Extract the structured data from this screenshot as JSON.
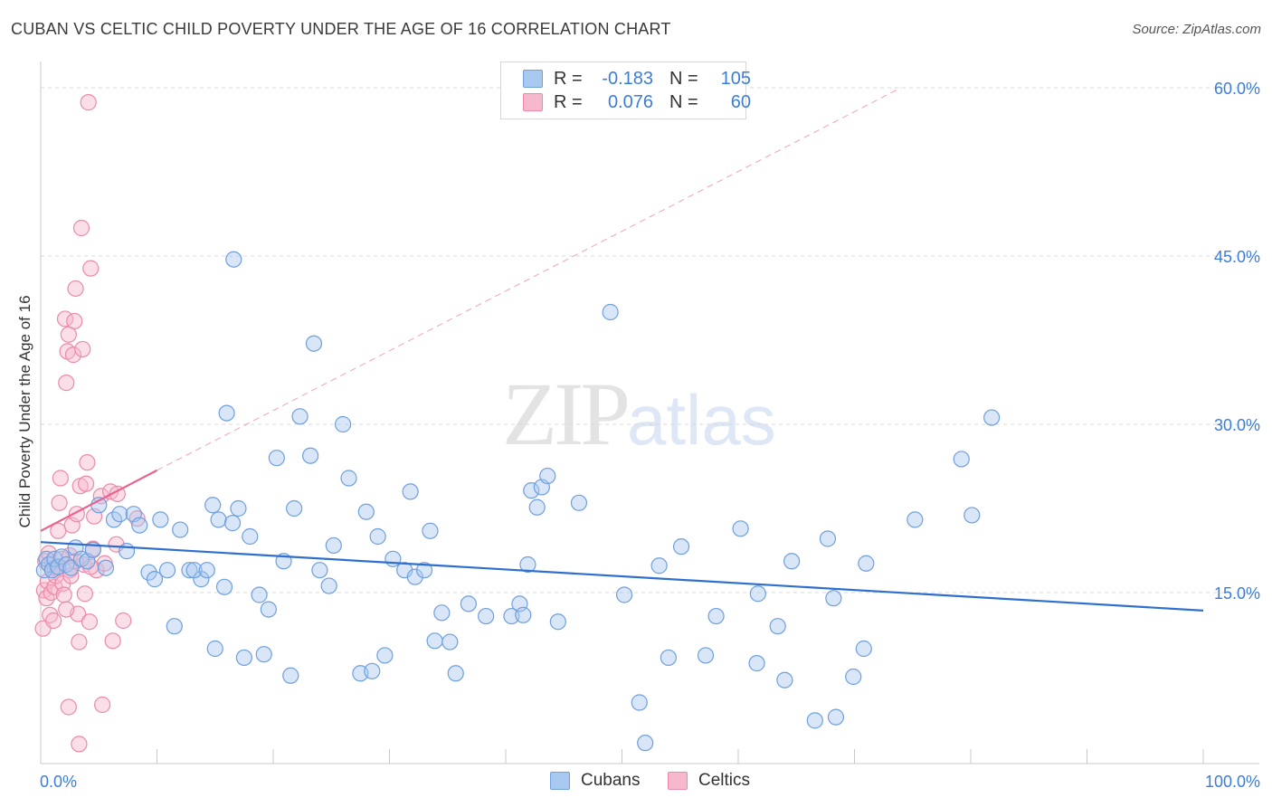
{
  "title": "CUBAN VS CELTIC CHILD POVERTY UNDER THE AGE OF 16 CORRELATION CHART",
  "source": "Source: ZipAtlas.com",
  "watermark": {
    "zip": "ZIP",
    "atlas": "atlas"
  },
  "legend": {
    "rows": [
      {
        "r_label": "R =",
        "r_value": "-0.183",
        "n_label": "N =",
        "n_value": "105",
        "color": "#a9c8f0"
      },
      {
        "r_label": "R =",
        "r_value": "0.076",
        "n_label": "N =",
        "n_value": "60",
        "color": "#f6b8cc"
      }
    ]
  },
  "bottom_legend": [
    "Cubans",
    "Celtics"
  ],
  "colors": {
    "cubans_fill": "#a9c8f0",
    "cubans_stroke": "#6f9fdd",
    "cubans_line": "#2f6fce",
    "celtics_fill": "#f6b8cc",
    "celtics_stroke": "#ec8aa8",
    "celtics_line": "#e8648e",
    "axis_label": "#3b7dd8",
    "grid": "#d8d8d8"
  },
  "chart_data": {
    "type": "scatter",
    "title": "CUBAN VS CELTIC CHILD POVERTY UNDER THE AGE OF 16 CORRELATION CHART",
    "xlabel": "",
    "ylabel": "Child Poverty Under the Age of 16",
    "xlim": [
      0,
      100
    ],
    "ylim": [
      0,
      61
    ],
    "x_tick_labels": [
      "0.0%",
      "100.0%"
    ],
    "y_ticks": [
      15,
      30,
      45,
      60
    ],
    "y_tick_labels": [
      "15.0%",
      "30.0%",
      "45.0%",
      "60.0%"
    ],
    "grid": "horizontal dashed",
    "legend_position": "top-center",
    "series": [
      {
        "name": "Cubans",
        "r": -0.183,
        "n": 105,
        "trend": {
          "x": [
            0,
            100
          ],
          "y": [
            19.5,
            13.4
          ]
        },
        "points": [
          [
            0.3,
            17.0
          ],
          [
            0.5,
            18.0
          ],
          [
            0.7,
            17.5
          ],
          [
            1.0,
            17.0
          ],
          [
            1.2,
            18.0
          ],
          [
            1.5,
            17.3
          ],
          [
            1.8,
            18.2
          ],
          [
            2.2,
            17.5
          ],
          [
            2.6,
            17.2
          ],
          [
            3.0,
            19.0
          ],
          [
            3.5,
            18.0
          ],
          [
            4.0,
            17.8
          ],
          [
            4.5,
            18.8
          ],
          [
            5.0,
            22.8
          ],
          [
            5.6,
            17.2
          ],
          [
            6.3,
            21.5
          ],
          [
            6.8,
            22.0
          ],
          [
            7.4,
            18.7
          ],
          [
            8.0,
            22.0
          ],
          [
            8.5,
            21.0
          ],
          [
            9.3,
            16.8
          ],
          [
            9.8,
            16.2
          ],
          [
            10.3,
            21.5
          ],
          [
            10.9,
            17.0
          ],
          [
            11.5,
            12.0
          ],
          [
            12.0,
            20.6
          ],
          [
            12.8,
            17.0
          ],
          [
            13.8,
            16.2
          ],
          [
            13.2,
            17.0
          ],
          [
            14.3,
            17.0
          ],
          [
            14.8,
            22.8
          ],
          [
            15.0,
            10.0
          ],
          [
            15.3,
            21.5
          ],
          [
            15.8,
            15.5
          ],
          [
            16.0,
            31.0
          ],
          [
            16.5,
            21.2
          ],
          [
            16.6,
            44.7
          ],
          [
            17.0,
            22.5
          ],
          [
            17.5,
            9.2
          ],
          [
            18.0,
            20.0
          ],
          [
            18.8,
            14.8
          ],
          [
            19.2,
            9.5
          ],
          [
            19.6,
            13.5
          ],
          [
            20.3,
            27.0
          ],
          [
            20.9,
            17.8
          ],
          [
            21.5,
            7.6
          ],
          [
            21.8,
            22.5
          ],
          [
            22.3,
            30.7
          ],
          [
            23.2,
            27.2
          ],
          [
            23.5,
            37.2
          ],
          [
            24.0,
            17.0
          ],
          [
            24.8,
            15.6
          ],
          [
            25.2,
            19.2
          ],
          [
            26.0,
            30.0
          ],
          [
            26.5,
            25.2
          ],
          [
            27.5,
            7.8
          ],
          [
            28.0,
            22.2
          ],
          [
            28.5,
            8.0
          ],
          [
            29.0,
            20.0
          ],
          [
            29.6,
            9.4
          ],
          [
            30.3,
            18.0
          ],
          [
            31.3,
            17.0
          ],
          [
            31.8,
            24.0
          ],
          [
            32.2,
            16.4
          ],
          [
            33.0,
            17.0
          ],
          [
            33.5,
            20.5
          ],
          [
            33.9,
            10.7
          ],
          [
            34.5,
            13.2
          ],
          [
            35.2,
            10.6
          ],
          [
            35.7,
            7.8
          ],
          [
            36.8,
            14.0
          ],
          [
            38.3,
            12.9
          ],
          [
            40.5,
            12.9
          ],
          [
            41.2,
            14.0
          ],
          [
            41.5,
            13.0
          ],
          [
            41.9,
            17.5
          ],
          [
            42.2,
            24.1
          ],
          [
            42.7,
            22.6
          ],
          [
            43.1,
            24.4
          ],
          [
            43.6,
            25.4
          ],
          [
            44.5,
            12.4
          ],
          [
            46.3,
            23.0
          ],
          [
            49.0,
            40.0
          ],
          [
            50.2,
            14.8
          ],
          [
            51.5,
            5.2
          ],
          [
            52.0,
            1.6
          ],
          [
            53.2,
            17.4
          ],
          [
            54.0,
            9.2
          ],
          [
            55.1,
            19.1
          ],
          [
            57.2,
            9.4
          ],
          [
            58.1,
            12.9
          ],
          [
            60.2,
            20.7
          ],
          [
            61.6,
            8.7
          ],
          [
            61.7,
            14.9
          ],
          [
            63.4,
            12.0
          ],
          [
            64.0,
            7.2
          ],
          [
            64.6,
            17.8
          ],
          [
            66.6,
            3.6
          ],
          [
            67.7,
            19.8
          ],
          [
            68.2,
            14.5
          ],
          [
            68.4,
            3.9
          ],
          [
            69.9,
            7.5
          ],
          [
            70.8,
            10.0
          ],
          [
            71.0,
            17.6
          ],
          [
            75.2,
            21.5
          ],
          [
            79.2,
            26.9
          ],
          [
            80.1,
            21.9
          ],
          [
            81.8,
            30.6
          ]
        ]
      },
      {
        "name": "Celtics",
        "r": 0.076,
        "n": 60,
        "trend": {
          "x": [
            0,
            10
          ],
          "y": [
            20.5,
            25.9
          ]
        },
        "trend_extension": {
          "x": [
            10,
            74
          ],
          "y": [
            25.9,
            60.0
          ]
        },
        "points": [
          [
            0.2,
            11.8
          ],
          [
            0.3,
            15.2
          ],
          [
            0.4,
            17.8
          ],
          [
            0.5,
            14.5
          ],
          [
            0.6,
            16.0
          ],
          [
            0.7,
            18.5
          ],
          [
            0.8,
            13.0
          ],
          [
            0.9,
            15.0
          ],
          [
            1.0,
            17.5
          ],
          [
            1.1,
            12.5
          ],
          [
            1.2,
            15.5
          ],
          [
            1.3,
            16.5
          ],
          [
            1.4,
            17.2
          ],
          [
            1.5,
            20.5
          ],
          [
            1.6,
            23.0
          ],
          [
            1.7,
            25.2
          ],
          [
            1.8,
            18.0
          ],
          [
            1.9,
            15.8
          ],
          [
            2.0,
            14.8
          ],
          [
            2.1,
            39.4
          ],
          [
            2.2,
            33.7
          ],
          [
            2.3,
            36.5
          ],
          [
            2.4,
            38.0
          ],
          [
            2.5,
            17.0
          ],
          [
            2.6,
            16.5
          ],
          [
            2.7,
            21.0
          ],
          [
            2.8,
            36.2
          ],
          [
            2.9,
            39.2
          ],
          [
            3.0,
            42.1
          ],
          [
            3.1,
            22.0
          ],
          [
            3.2,
            13.1
          ],
          [
            3.3,
            10.6
          ],
          [
            3.4,
            24.5
          ],
          [
            3.5,
            47.5
          ],
          [
            3.6,
            36.7
          ],
          [
            3.7,
            17.5
          ],
          [
            3.8,
            14.9
          ],
          [
            3.9,
            24.7
          ],
          [
            4.0,
            26.6
          ],
          [
            4.1,
            58.7
          ],
          [
            4.2,
            12.4
          ],
          [
            4.3,
            43.9
          ],
          [
            4.5,
            18.9
          ],
          [
            4.8,
            17.0
          ],
          [
            5.2,
            23.6
          ],
          [
            5.5,
            17.6
          ],
          [
            6.0,
            24.0
          ],
          [
            6.2,
            10.7
          ],
          [
            6.5,
            19.3
          ],
          [
            7.1,
            12.5
          ],
          [
            8.3,
            21.6
          ],
          [
            2.4,
            4.8
          ],
          [
            2.5,
            18.3
          ],
          [
            4.3,
            17.3
          ],
          [
            6.6,
            23.8
          ],
          [
            3.3,
            1.5
          ],
          [
            5.3,
            5.0
          ],
          [
            2.2,
            13.5
          ],
          [
            4.6,
            21.8
          ],
          [
            3.0,
            17.8
          ]
        ]
      }
    ]
  }
}
